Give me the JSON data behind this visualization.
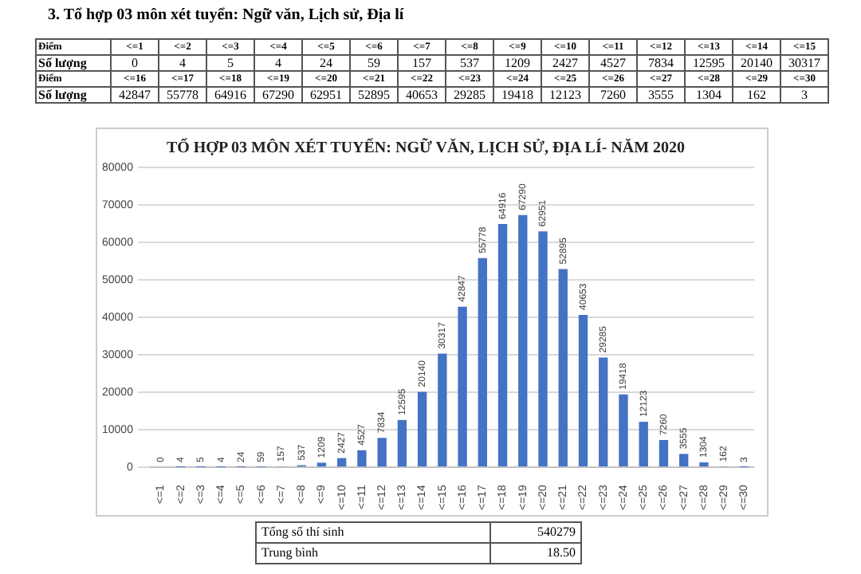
{
  "chart_data": [
    {
      "type": "other",
      "annotations": [
        "3. Tổ hợp 03 môn xét tuyển: Ngữ văn, Lịch sử, Địa lí",
        "Điểm",
        "Số lượng"
      ],
      "categories": [
        "<=1",
        "<=2",
        "<=3",
        "<=4",
        "<=5",
        "<=6",
        "<=7",
        "<=8",
        "<=9",
        "<=10",
        "<=11",
        "<=12",
        "<=13",
        "<=14",
        "<=15",
        "<=16",
        "<=17",
        "<=18",
        "<=19",
        "<=20",
        "<=21",
        "<=22",
        "<=23",
        "<=24",
        "<=25",
        "<=26",
        "<=27",
        "<=28",
        "<=29",
        "<=30"
      ],
      "values": [
        0,
        4,
        5,
        4,
        24,
        59,
        157,
        537,
        1209,
        2427,
        4527,
        7834,
        12595,
        20140,
        30317,
        42847,
        55778,
        64916,
        67290,
        62951,
        52895,
        40653,
        29285,
        19418,
        12123,
        7260,
        3555,
        1304,
        162,
        3
      ],
      "data_labels": true
    },
    {
      "type": "bar",
      "title": "TỔ HỢP 03 MÔN XÉT TUYỂN: NGỮ VĂN, LỊCH SỬ, ĐỊA LÍ- NĂM 2020",
      "categories": [
        "<=1",
        "<=2",
        "<=3",
        "<=4",
        "<=5",
        "<=6",
        "<=7",
        "<=8",
        "<=9",
        "<=10",
        "<=11",
        "<=12",
        "<=13",
        "<=14",
        "<=15",
        "<=16",
        "<=17",
        "<=18",
        "<=19",
        "<=20",
        "<=21",
        "<=22",
        "<=23",
        "<=24",
        "<=25",
        "<=26",
        "<=27",
        "<=28",
        "<=29",
        "<=30"
      ],
      "values": [
        0,
        4,
        5,
        4,
        24,
        59,
        157,
        537,
        1209,
        2427,
        4527,
        7834,
        12595,
        20140,
        30317,
        42847,
        55778,
        64916,
        67290,
        62951,
        52895,
        40653,
        29285,
        19418,
        12123,
        7260,
        3555,
        1304,
        162,
        3
      ],
      "color": "#4472c4",
      "ylim": [
        0,
        80000
      ],
      "yticks": [
        0,
        10000,
        20000,
        30000,
        40000,
        50000,
        60000,
        70000,
        80000
      ],
      "grid": "y",
      "data_labels": true,
      "annotations": [
        "Tổng số thí sinh",
        "540279",
        "Trung bình",
        "18.50"
      ]
    }
  ]
}
